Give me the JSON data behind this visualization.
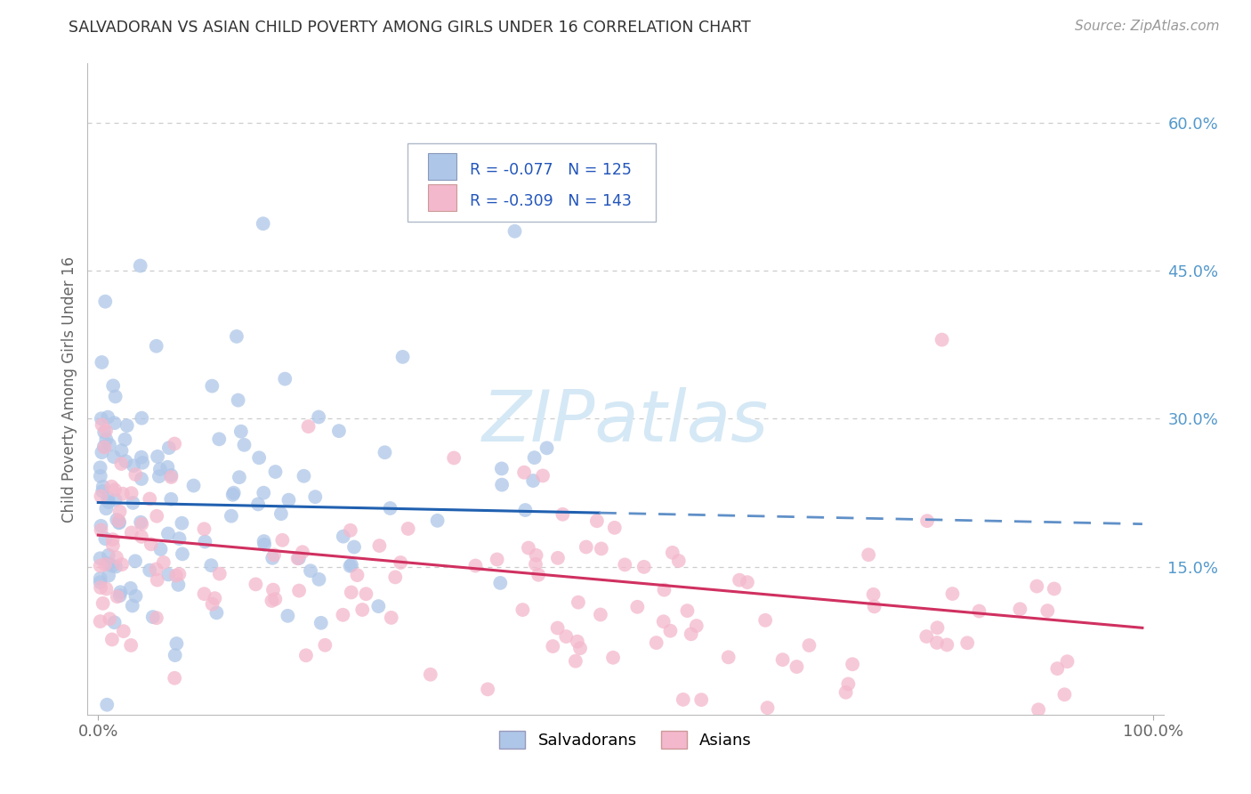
{
  "title": "SALVADORAN VS ASIAN CHILD POVERTY AMONG GIRLS UNDER 16 CORRELATION CHART",
  "source": "Source: ZipAtlas.com",
  "ylabel": "Child Poverty Among Girls Under 16",
  "xlim": [
    -0.01,
    1.01
  ],
  "ylim": [
    0.0,
    0.66
  ],
  "xtick_pos": [
    0.0,
    1.0
  ],
  "xticklabels": [
    "0.0%",
    "100.0%"
  ],
  "ytick_vals": [
    0.15,
    0.3,
    0.45,
    0.6
  ],
  "ytick_labels": [
    "15.0%",
    "30.0%",
    "45.0%",
    "60.0%"
  ],
  "blue_R": "R = -0.077",
  "blue_N": "N = 125",
  "pink_R": "R = -0.309",
  "pink_N": "N = 143",
  "legend_label1": "Salvadorans",
  "legend_label2": "Asians",
  "blue_color": "#aec6e8",
  "blue_line_color": "#2060b0",
  "blue_line_dash_color": "#6090c8",
  "pink_color": "#f4b8cc",
  "pink_line_color": "#d03060",
  "watermark_color": "#d5e8f5",
  "background_color": "#ffffff",
  "grid_color": "#cccccc",
  "title_color": "#333333",
  "source_color": "#999999",
  "tick_color": "#666666",
  "ylabel_color": "#666666",
  "right_tick_color": "#5599cc",
  "legend_text_color": "#2255bb",
  "legend_N_color": "#2255bb"
}
